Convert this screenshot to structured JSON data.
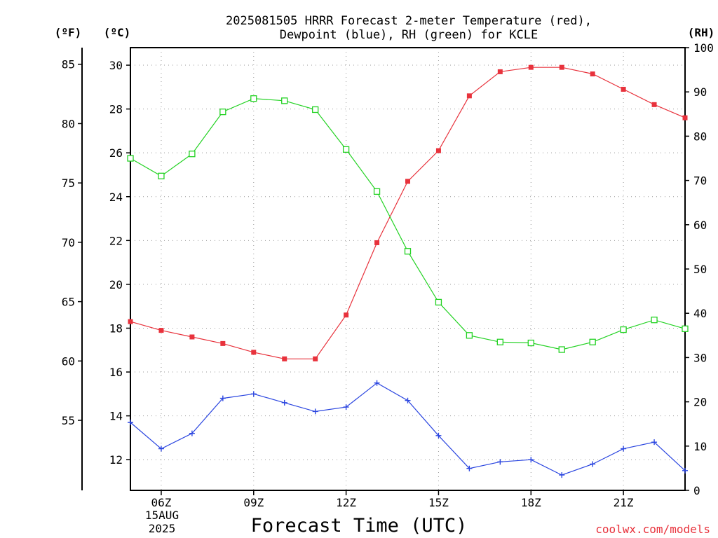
{
  "chart_data": {
    "type": "line",
    "title": [
      "2025081505 HRRR Forecast 2-meter Temperature (red),",
      "Dewpoint (blue), RH (green) for KCLE"
    ],
    "xlabel": "Forecast Time (UTC)",
    "x": [
      "05Z",
      "06Z",
      "07Z",
      "08Z",
      "09Z",
      "10Z",
      "11Z",
      "12Z",
      "13Z",
      "14Z",
      "15Z",
      "16Z",
      "17Z",
      "18Z",
      "19Z",
      "20Z",
      "21Z",
      "22Z",
      "23Z"
    ],
    "x_tick_labels": [
      "06Z",
      "09Z",
      "12Z",
      "15Z",
      "18Z",
      "21Z"
    ],
    "x_tick_positions": [
      "06Z",
      "09Z",
      "12Z",
      "15Z",
      "18Z",
      "21Z"
    ],
    "date_label": [
      "15AUG",
      "2025"
    ],
    "axes": {
      "fahrenheit": {
        "unit": "(ºF)",
        "range": [
          49.1,
          86.4
        ],
        "ticks": [
          55,
          60,
          65,
          70,
          75,
          80,
          85
        ]
      },
      "celsius": {
        "unit": "(ºC)",
        "range": [
          10.6,
          30.8
        ],
        "ticks": [
          12,
          14,
          16,
          18,
          20,
          22,
          24,
          26,
          28,
          30
        ]
      },
      "rh": {
        "unit": "(RH)",
        "range": [
          0,
          100
        ],
        "ticks": [
          0,
          10,
          20,
          30,
          40,
          50,
          60,
          70,
          80,
          90,
          100
        ]
      }
    },
    "grid": true,
    "series": [
      {
        "name": "Temperature",
        "axis": "celsius",
        "color": "#e8323c",
        "marker": "filled-square",
        "values": [
          18.3,
          17.9,
          17.6,
          17.3,
          16.9,
          16.6,
          16.6,
          18.6,
          21.9,
          24.7,
          26.1,
          28.6,
          29.7,
          29.9,
          29.9,
          29.6,
          28.9,
          28.2,
          27.6
        ]
      },
      {
        "name": "Dewpoint",
        "axis": "celsius",
        "color": "#2a45e0",
        "marker": "plus",
        "values": [
          13.7,
          12.5,
          13.2,
          14.8,
          15.0,
          14.6,
          14.2,
          14.4,
          15.5,
          14.7,
          13.1,
          11.6,
          11.9,
          12.0,
          11.3,
          11.8,
          12.5,
          12.8,
          11.5
        ]
      },
      {
        "name": "RH",
        "axis": "rh",
        "color": "#22d222",
        "marker": "open-square",
        "values": [
          75,
          71,
          76,
          85.5,
          88.5,
          88,
          86,
          77,
          67.5,
          54,
          42.5,
          35,
          33.5,
          33.3,
          31.8,
          33.5,
          36.3,
          38.5,
          36.5
        ]
      }
    ]
  },
  "credit": "coolwx.com/models"
}
